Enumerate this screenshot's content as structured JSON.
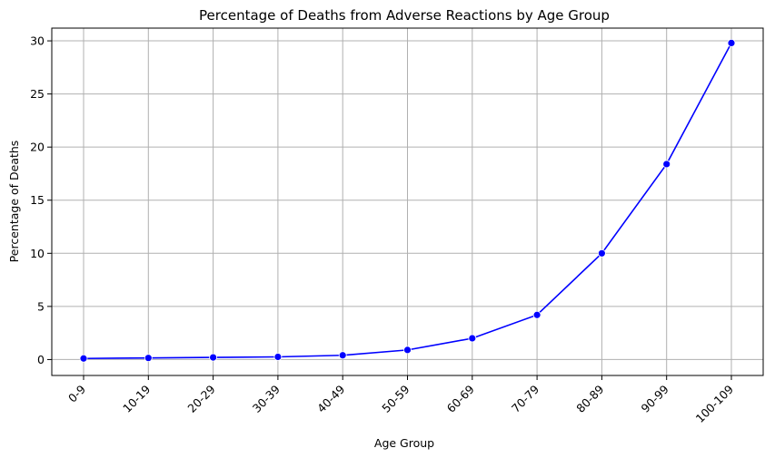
{
  "chart_data": {
    "type": "line",
    "title": "Percentage of Deaths from Adverse Reactions by Age Group",
    "xlabel": "Age Group",
    "ylabel": "Percentage of Deaths",
    "categories": [
      "0-9",
      "10-19",
      "20-29",
      "30-39",
      "40-49",
      "50-59",
      "60-69",
      "70-79",
      "80-89",
      "90-99",
      "100-109"
    ],
    "series": [
      {
        "values": [
          0.1,
          0.15,
          0.2,
          0.25,
          0.4,
          0.9,
          2.0,
          4.2,
          10.0,
          18.4,
          29.8
        ],
        "color": "#0000ff"
      }
    ],
    "ylim": [
      -1.5,
      31.2
    ],
    "yticks": [
      0,
      5,
      10,
      15,
      20,
      25,
      30
    ],
    "grid": true,
    "legend": "none"
  }
}
